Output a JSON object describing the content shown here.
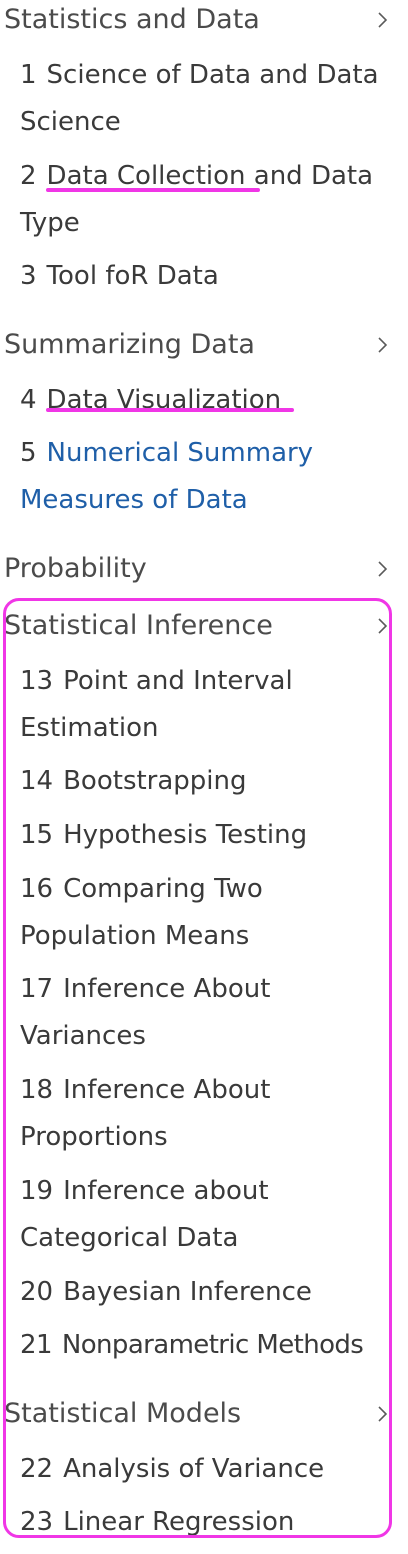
{
  "sections": [
    {
      "title": "Statistics and Data",
      "items": [
        {
          "num": "1",
          "title": "Science of Data and Data Science"
        },
        {
          "num": "2",
          "title": "Data Collection and Data Type"
        },
        {
          "num": "3",
          "title": "Tool foR Data"
        }
      ]
    },
    {
      "title": "Summarizing Data",
      "items": [
        {
          "num": "4",
          "title": "Data Visualization"
        },
        {
          "num": "5",
          "title": "Numerical Summary Measures of Data"
        }
      ]
    },
    {
      "title": "Probability",
      "items": []
    },
    {
      "title": "Statistical Inference",
      "items": [
        {
          "num": "13",
          "title": "Point and Interval Estimation"
        },
        {
          "num": "14",
          "title": "Bootstrapping"
        },
        {
          "num": "15",
          "title": "Hypothesis Testing"
        },
        {
          "num": "16",
          "title": "Comparing Two Population Means"
        },
        {
          "num": "17",
          "title": "Inference About Variances"
        },
        {
          "num": "18",
          "title": "Inference About Proportions"
        },
        {
          "num": "19",
          "title": "Inference about Categorical Data"
        },
        {
          "num": "20",
          "title": "Bayesian Inference"
        },
        {
          "num": "21",
          "title": "Nonparametric Methods"
        }
      ]
    },
    {
      "title": "Statistical Models",
      "items": [
        {
          "num": "22",
          "title": "Analysis of Variance"
        },
        {
          "num": "23",
          "title": "Linear Regression"
        }
      ]
    }
  ],
  "icons": {
    "section_chevron": "chevron-right-icon"
  },
  "colors": {
    "link": "#1f5fa8",
    "annotation": "#f036e6",
    "text": "#3a3a3a",
    "section_title": "#4b4b4b"
  }
}
